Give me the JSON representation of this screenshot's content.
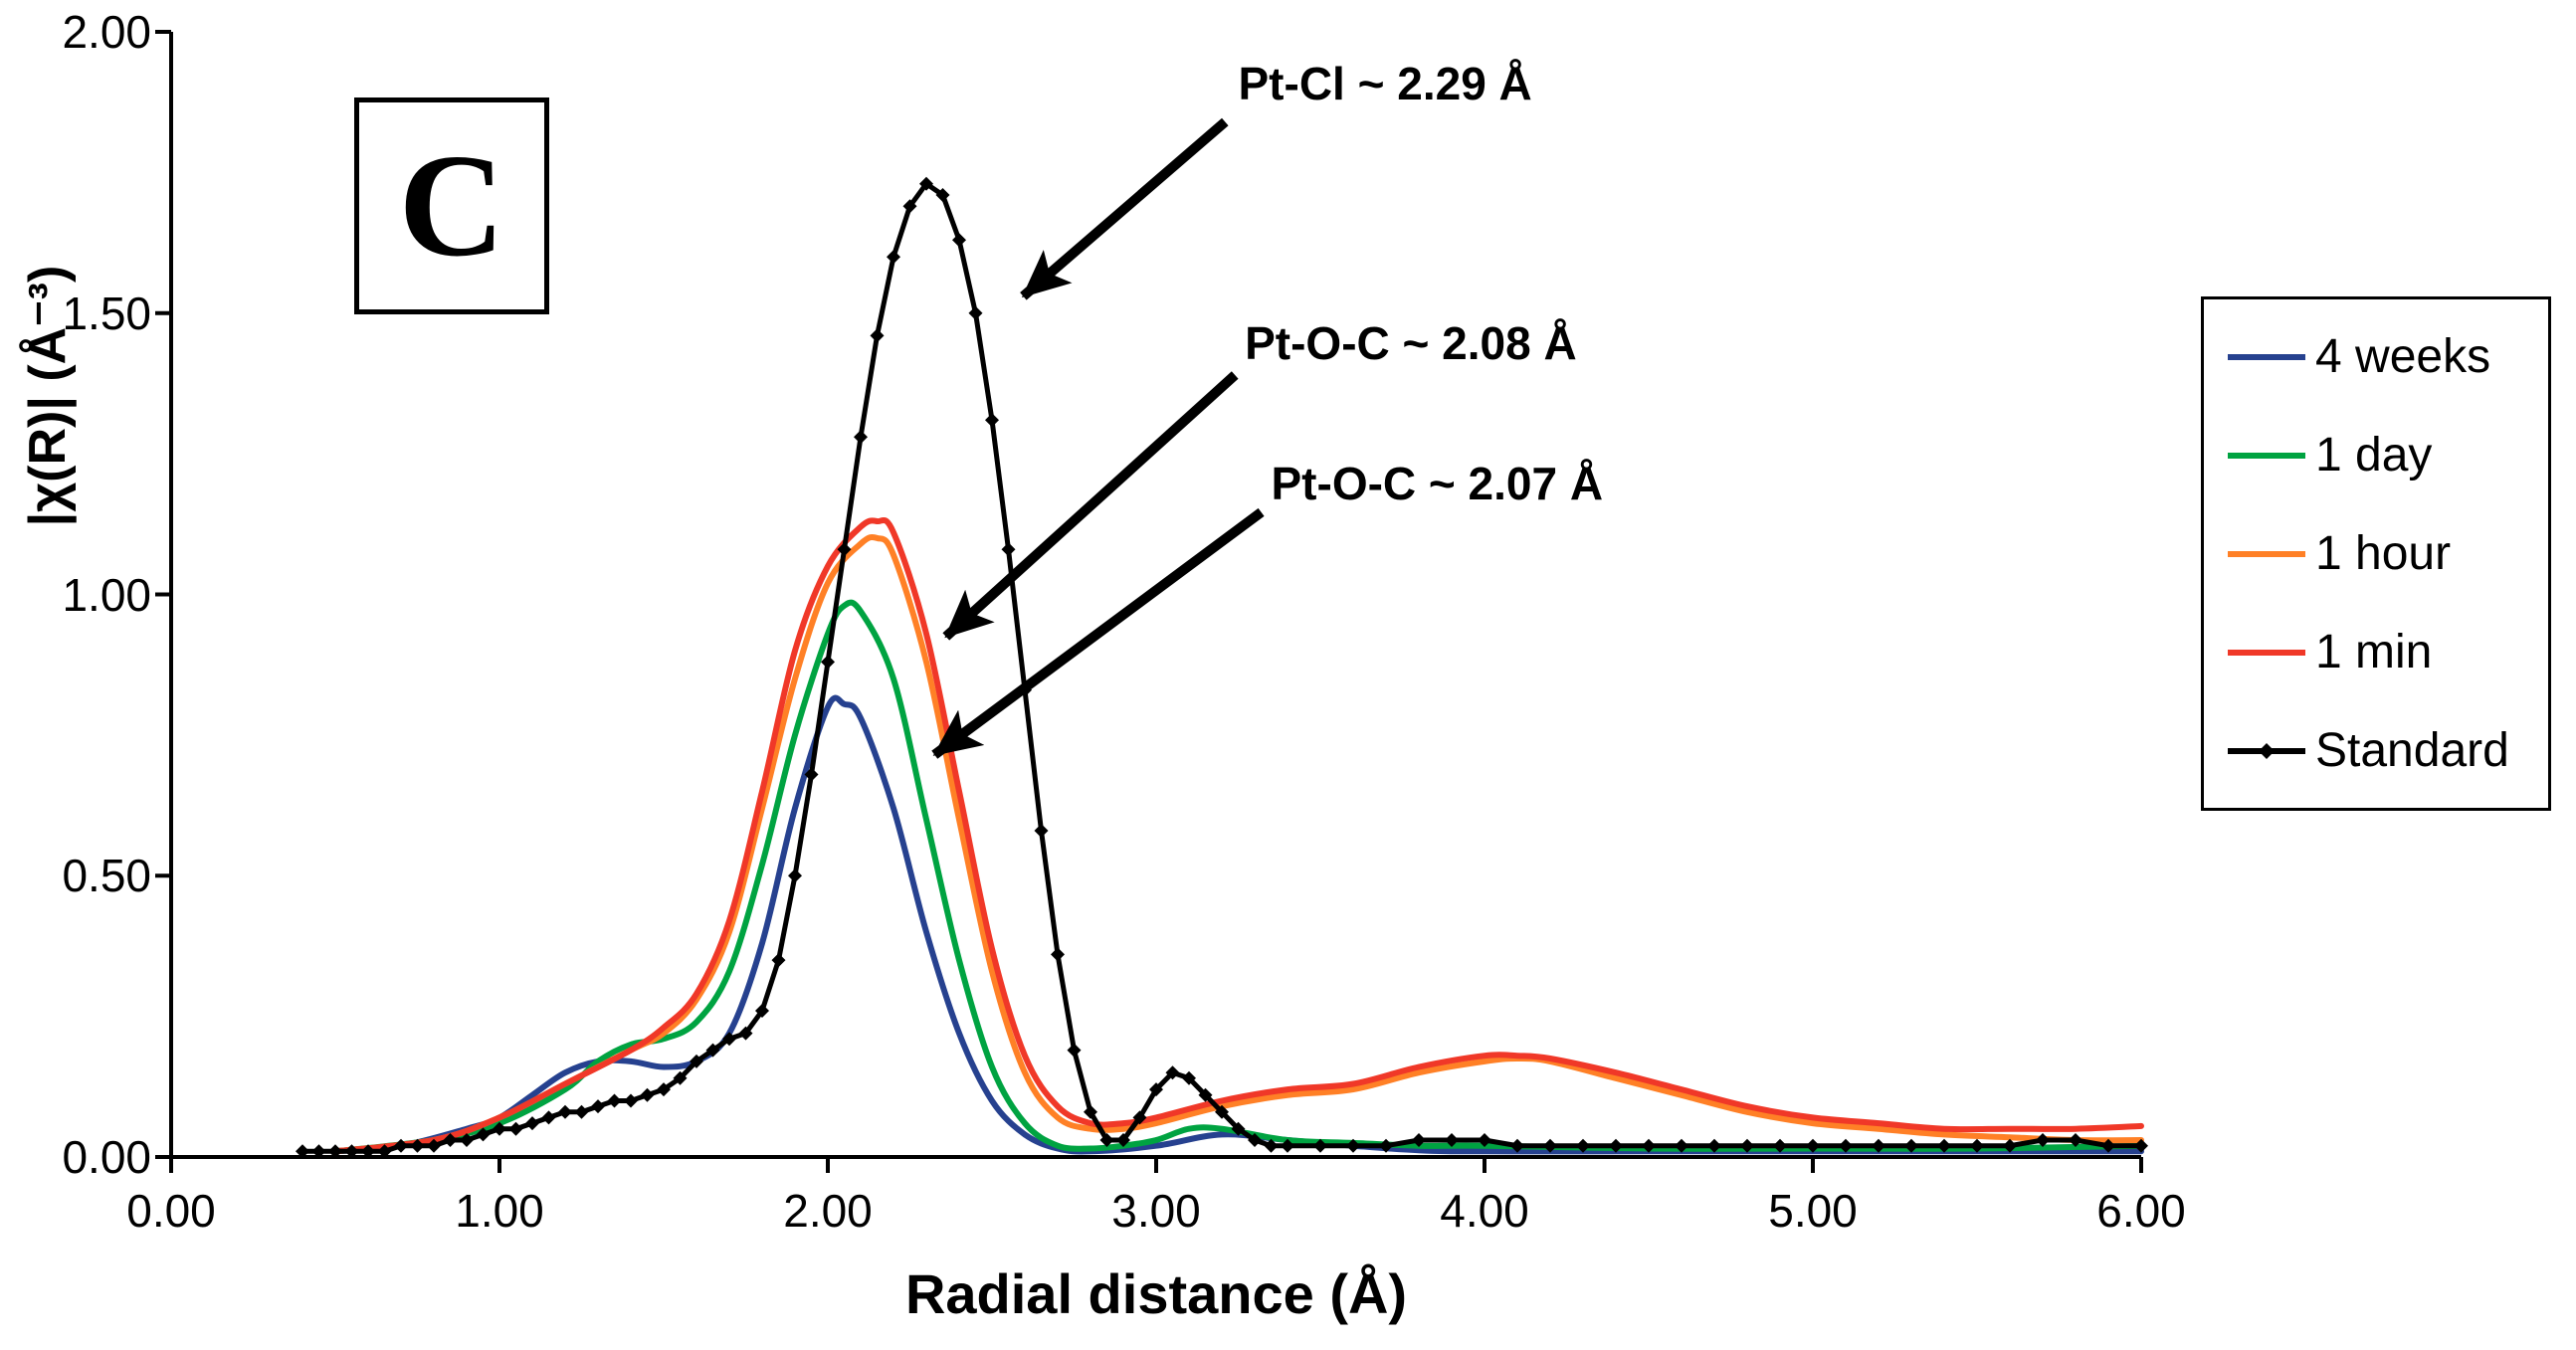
{
  "figure": {
    "panel_label": "C",
    "background": "#FFFFFF"
  },
  "chart_data": {
    "type": "line",
    "title": "",
    "xlabel": "Radial distance (Å)",
    "ylabel": "|χ(R)| (Å⁻³)",
    "xlim": [
      0,
      6
    ],
    "ylim": [
      0,
      2
    ],
    "xticks": [
      "0.00",
      "1.00",
      "2.00",
      "3.00",
      "4.00",
      "5.00",
      "6.00"
    ],
    "yticks": [
      "0.00",
      "0.50",
      "1.00",
      "1.50",
      "2.00"
    ],
    "grid": false,
    "legend_position": "right-outside",
    "series": [
      {
        "name": "4 weeks",
        "color": "#26418F",
        "marker": "none",
        "points": [
          [
            0.5,
            0.01
          ],
          [
            0.7,
            0.02
          ],
          [
            0.9,
            0.05
          ],
          [
            1.0,
            0.07
          ],
          [
            1.1,
            0.11
          ],
          [
            1.2,
            0.15
          ],
          [
            1.3,
            0.17
          ],
          [
            1.4,
            0.17
          ],
          [
            1.5,
            0.16
          ],
          [
            1.6,
            0.17
          ],
          [
            1.7,
            0.22
          ],
          [
            1.8,
            0.38
          ],
          [
            1.9,
            0.62
          ],
          [
            2.0,
            0.8
          ],
          [
            2.05,
            0.805
          ],
          [
            2.1,
            0.78
          ],
          [
            2.2,
            0.62
          ],
          [
            2.3,
            0.4
          ],
          [
            2.4,
            0.22
          ],
          [
            2.5,
            0.1
          ],
          [
            2.6,
            0.04
          ],
          [
            2.7,
            0.015
          ],
          [
            2.8,
            0.01
          ],
          [
            3.0,
            0.02
          ],
          [
            3.2,
            0.04
          ],
          [
            3.4,
            0.03
          ],
          [
            3.6,
            0.02
          ],
          [
            3.8,
            0.012
          ],
          [
            4.0,
            0.01
          ],
          [
            4.5,
            0.01
          ],
          [
            5.0,
            0.01
          ],
          [
            5.5,
            0.01
          ],
          [
            6.0,
            0.01
          ]
        ]
      },
      {
        "name": "1 day",
        "color": "#00A341",
        "marker": "none",
        "points": [
          [
            0.5,
            0.01
          ],
          [
            0.8,
            0.03
          ],
          [
            1.0,
            0.06
          ],
          [
            1.2,
            0.12
          ],
          [
            1.3,
            0.17
          ],
          [
            1.4,
            0.2
          ],
          [
            1.5,
            0.21
          ],
          [
            1.6,
            0.24
          ],
          [
            1.7,
            0.33
          ],
          [
            1.8,
            0.52
          ],
          [
            1.9,
            0.75
          ],
          [
            2.0,
            0.93
          ],
          [
            2.05,
            0.98
          ],
          [
            2.1,
            0.97
          ],
          [
            2.2,
            0.85
          ],
          [
            2.3,
            0.6
          ],
          [
            2.4,
            0.35
          ],
          [
            2.5,
            0.16
          ],
          [
            2.6,
            0.06
          ],
          [
            2.7,
            0.02
          ],
          [
            2.8,
            0.015
          ],
          [
            2.9,
            0.02
          ],
          [
            3.0,
            0.03
          ],
          [
            3.1,
            0.05
          ],
          [
            3.2,
            0.05
          ],
          [
            3.4,
            0.03
          ],
          [
            3.6,
            0.025
          ],
          [
            3.8,
            0.02
          ],
          [
            4.0,
            0.02
          ],
          [
            4.5,
            0.015
          ],
          [
            5.0,
            0.015
          ],
          [
            5.5,
            0.015
          ],
          [
            6.0,
            0.02
          ]
        ]
      },
      {
        "name": "1 hour",
        "color": "#FF8026",
        "marker": "none",
        "points": [
          [
            0.5,
            0.01
          ],
          [
            0.8,
            0.03
          ],
          [
            1.0,
            0.07
          ],
          [
            1.2,
            0.13
          ],
          [
            1.4,
            0.19
          ],
          [
            1.5,
            0.22
          ],
          [
            1.6,
            0.28
          ],
          [
            1.7,
            0.4
          ],
          [
            1.8,
            0.62
          ],
          [
            1.9,
            0.85
          ],
          [
            2.0,
            1.02
          ],
          [
            2.1,
            1.09
          ],
          [
            2.15,
            1.1
          ],
          [
            2.2,
            1.07
          ],
          [
            2.3,
            0.88
          ],
          [
            2.4,
            0.6
          ],
          [
            2.5,
            0.33
          ],
          [
            2.6,
            0.15
          ],
          [
            2.7,
            0.07
          ],
          [
            2.8,
            0.05
          ],
          [
            2.9,
            0.05
          ],
          [
            3.0,
            0.06
          ],
          [
            3.2,
            0.09
          ],
          [
            3.4,
            0.11
          ],
          [
            3.6,
            0.12
          ],
          [
            3.8,
            0.15
          ],
          [
            4.0,
            0.17
          ],
          [
            4.1,
            0.175
          ],
          [
            4.2,
            0.17
          ],
          [
            4.4,
            0.14
          ],
          [
            4.6,
            0.11
          ],
          [
            4.8,
            0.08
          ],
          [
            5.0,
            0.06
          ],
          [
            5.2,
            0.05
          ],
          [
            5.4,
            0.04
          ],
          [
            5.6,
            0.035
          ],
          [
            5.8,
            0.03
          ],
          [
            6.0,
            0.03
          ]
        ]
      },
      {
        "name": "1 min",
        "color": "#F03828",
        "marker": "none",
        "points": [
          [
            0.5,
            0.01
          ],
          [
            0.8,
            0.03
          ],
          [
            1.0,
            0.07
          ],
          [
            1.2,
            0.13
          ],
          [
            1.4,
            0.19
          ],
          [
            1.5,
            0.23
          ],
          [
            1.6,
            0.29
          ],
          [
            1.7,
            0.42
          ],
          [
            1.8,
            0.65
          ],
          [
            1.9,
            0.9
          ],
          [
            2.0,
            1.05
          ],
          [
            2.1,
            1.12
          ],
          [
            2.15,
            1.13
          ],
          [
            2.2,
            1.11
          ],
          [
            2.3,
            0.93
          ],
          [
            2.4,
            0.65
          ],
          [
            2.5,
            0.37
          ],
          [
            2.6,
            0.18
          ],
          [
            2.7,
            0.09
          ],
          [
            2.8,
            0.06
          ],
          [
            2.9,
            0.06
          ],
          [
            3.0,
            0.07
          ],
          [
            3.2,
            0.1
          ],
          [
            3.4,
            0.12
          ],
          [
            3.6,
            0.13
          ],
          [
            3.8,
            0.16
          ],
          [
            4.0,
            0.18
          ],
          [
            4.1,
            0.18
          ],
          [
            4.2,
            0.175
          ],
          [
            4.4,
            0.15
          ],
          [
            4.6,
            0.12
          ],
          [
            4.8,
            0.09
          ],
          [
            5.0,
            0.07
          ],
          [
            5.2,
            0.06
          ],
          [
            5.4,
            0.05
          ],
          [
            5.6,
            0.05
          ],
          [
            5.8,
            0.05
          ],
          [
            6.0,
            0.055
          ]
        ]
      },
      {
        "name": "Standard",
        "color": "#000000",
        "marker": "diamond",
        "points": [
          [
            0.4,
            0.01
          ],
          [
            0.45,
            0.01
          ],
          [
            0.5,
            0.01
          ],
          [
            0.55,
            0.01
          ],
          [
            0.6,
            0.01
          ],
          [
            0.65,
            0.01
          ],
          [
            0.7,
            0.02
          ],
          [
            0.75,
            0.02
          ],
          [
            0.8,
            0.02
          ],
          [
            0.85,
            0.03
          ],
          [
            0.9,
            0.03
          ],
          [
            0.95,
            0.04
          ],
          [
            1.0,
            0.05
          ],
          [
            1.05,
            0.05
          ],
          [
            1.1,
            0.06
          ],
          [
            1.15,
            0.07
          ],
          [
            1.2,
            0.08
          ],
          [
            1.25,
            0.08
          ],
          [
            1.3,
            0.09
          ],
          [
            1.35,
            0.1
          ],
          [
            1.4,
            0.1
          ],
          [
            1.45,
            0.11
          ],
          [
            1.5,
            0.12
          ],
          [
            1.55,
            0.14
          ],
          [
            1.6,
            0.17
          ],
          [
            1.65,
            0.19
          ],
          [
            1.7,
            0.21
          ],
          [
            1.75,
            0.22
          ],
          [
            1.8,
            0.26
          ],
          [
            1.85,
            0.35
          ],
          [
            1.9,
            0.5
          ],
          [
            1.95,
            0.68
          ],
          [
            2.0,
            0.88
          ],
          [
            2.05,
            1.08
          ],
          [
            2.1,
            1.28
          ],
          [
            2.15,
            1.46
          ],
          [
            2.2,
            1.6
          ],
          [
            2.25,
            1.69
          ],
          [
            2.3,
            1.73
          ],
          [
            2.35,
            1.71
          ],
          [
            2.4,
            1.63
          ],
          [
            2.45,
            1.5
          ],
          [
            2.5,
            1.31
          ],
          [
            2.55,
            1.08
          ],
          [
            2.6,
            0.83
          ],
          [
            2.65,
            0.58
          ],
          [
            2.7,
            0.36
          ],
          [
            2.75,
            0.19
          ],
          [
            2.8,
            0.08
          ],
          [
            2.85,
            0.03
          ],
          [
            2.9,
            0.03
          ],
          [
            2.95,
            0.07
          ],
          [
            3.0,
            0.12
          ],
          [
            3.05,
            0.15
          ],
          [
            3.1,
            0.14
          ],
          [
            3.15,
            0.11
          ],
          [
            3.2,
            0.08
          ],
          [
            3.25,
            0.05
          ],
          [
            3.3,
            0.03
          ],
          [
            3.35,
            0.02
          ],
          [
            3.4,
            0.02
          ],
          [
            3.5,
            0.02
          ],
          [
            3.6,
            0.02
          ],
          [
            3.7,
            0.02
          ],
          [
            3.8,
            0.03
          ],
          [
            3.9,
            0.03
          ],
          [
            4.0,
            0.03
          ],
          [
            4.1,
            0.02
          ],
          [
            4.2,
            0.02
          ],
          [
            4.3,
            0.02
          ],
          [
            4.4,
            0.02
          ],
          [
            4.5,
            0.02
          ],
          [
            4.6,
            0.02
          ],
          [
            4.7,
            0.02
          ],
          [
            4.8,
            0.02
          ],
          [
            4.9,
            0.02
          ],
          [
            5.0,
            0.02
          ],
          [
            5.1,
            0.02
          ],
          [
            5.2,
            0.02
          ],
          [
            5.3,
            0.02
          ],
          [
            5.4,
            0.02
          ],
          [
            5.5,
            0.02
          ],
          [
            5.6,
            0.02
          ],
          [
            5.7,
            0.03
          ],
          [
            5.8,
            0.03
          ],
          [
            5.9,
            0.02
          ],
          [
            6.0,
            0.02
          ]
        ]
      }
    ],
    "annotations": [
      {
        "text": "Pt-Cl ~ 2.29 Å",
        "text_pos": [
          3.25,
          1.955
        ],
        "arrow_from": [
          3.21,
          1.84
        ],
        "arrow_to": [
          2.595,
          1.53
        ]
      },
      {
        "text": "Pt-O-C ~ 2.08 Å",
        "text_pos": [
          3.27,
          1.495
        ],
        "arrow_from": [
          3.24,
          1.39
        ],
        "arrow_to": [
          2.36,
          0.925
        ]
      },
      {
        "text": "Pt-O-C ~ 2.07 Å",
        "text_pos": [
          3.35,
          1.245
        ],
        "arrow_from": [
          3.32,
          1.146
        ],
        "arrow_to": [
          2.325,
          0.715
        ]
      }
    ]
  }
}
